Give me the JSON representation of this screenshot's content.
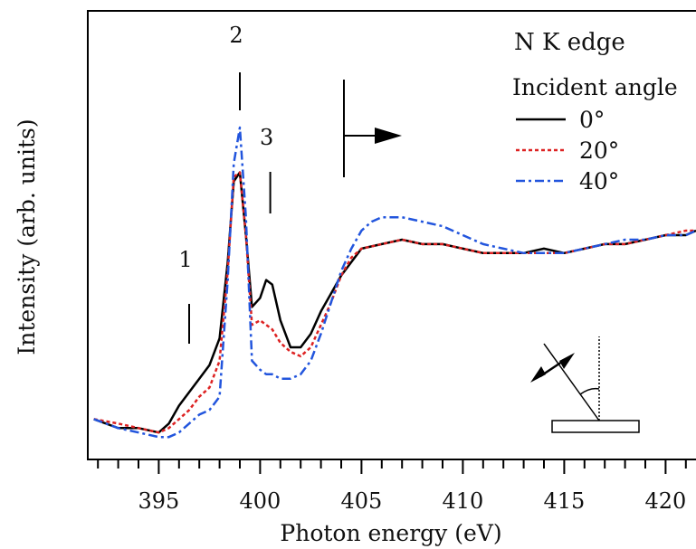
{
  "chart_data": {
    "type": "line",
    "title": "N K edge",
    "xlabel": "Photon energy (eV)",
    "ylabel": "Intensity (arb. units)",
    "xlim": [
      391.5,
      421.5
    ],
    "ylim": [
      0,
      1.0
    ],
    "x_ticks": [
      395,
      400,
      405,
      410,
      415,
      420
    ],
    "x_tick_labels": [
      "395",
      "400",
      "405",
      "410",
      "415",
      "420"
    ],
    "grid": false,
    "legend": {
      "title": "Incident angle",
      "placement": "top-right"
    },
    "annotations": [
      {
        "label": "1",
        "x": 396.5
      },
      {
        "label": "2",
        "x": 399.0
      },
      {
        "label": "3",
        "x": 400.5
      }
    ],
    "series": [
      {
        "name": "0°",
        "color": "#000000",
        "style": "solid",
        "x": [
          391.8,
          393,
          394,
          395,
          395.5,
          396,
          396.5,
          397,
          397.5,
          398,
          398.4,
          398.7,
          399.0,
          399.3,
          399.6,
          400,
          400.3,
          400.6,
          401,
          401.5,
          402,
          402.5,
          403,
          403.5,
          404,
          404.5,
          405,
          406,
          407,
          408,
          409,
          410,
          411,
          412,
          413,
          414,
          415,
          416,
          417,
          418,
          419,
          420,
          421,
          421.5
        ],
        "y": [
          0.09,
          0.07,
          0.07,
          0.06,
          0.08,
          0.12,
          0.15,
          0.18,
          0.21,
          0.27,
          0.44,
          0.62,
          0.64,
          0.5,
          0.34,
          0.36,
          0.4,
          0.39,
          0.31,
          0.25,
          0.25,
          0.28,
          0.33,
          0.37,
          0.41,
          0.44,
          0.47,
          0.48,
          0.49,
          0.48,
          0.48,
          0.47,
          0.46,
          0.46,
          0.46,
          0.47,
          0.46,
          0.47,
          0.48,
          0.48,
          0.49,
          0.5,
          0.5,
          0.51
        ]
      },
      {
        "name": "20°",
        "color": "#dd2222",
        "style": "dotted",
        "x": [
          391.8,
          393,
          394,
          395,
          395.5,
          396,
          396.5,
          397,
          397.5,
          398,
          398.4,
          398.7,
          399.0,
          399.3,
          399.6,
          400,
          400.3,
          400.6,
          401,
          401.5,
          402,
          402.5,
          403,
          403.5,
          404,
          404.5,
          405,
          406,
          407,
          408,
          409,
          410,
          411,
          412,
          413,
          414,
          415,
          416,
          417,
          418,
          419,
          420,
          421,
          421.5
        ],
        "y": [
          0.09,
          0.08,
          0.07,
          0.06,
          0.07,
          0.09,
          0.11,
          0.14,
          0.16,
          0.22,
          0.42,
          0.63,
          0.64,
          0.5,
          0.3,
          0.31,
          0.3,
          0.29,
          0.26,
          0.24,
          0.23,
          0.25,
          0.3,
          0.35,
          0.41,
          0.45,
          0.47,
          0.48,
          0.49,
          0.48,
          0.48,
          0.47,
          0.46,
          0.46,
          0.46,
          0.46,
          0.46,
          0.47,
          0.48,
          0.48,
          0.49,
          0.5,
          0.51,
          0.51
        ]
      },
      {
        "name": "40°",
        "color": "#2255dd",
        "style": "dashdot",
        "x": [
          391.8,
          393,
          394,
          395,
          395.5,
          396,
          396.5,
          397,
          397.5,
          398,
          398.4,
          398.7,
          399.0,
          399.3,
          399.6,
          400,
          400.3,
          400.6,
          401,
          401.5,
          402,
          402.5,
          403,
          403.5,
          404,
          404.5,
          405,
          405.5,
          406,
          407,
          408,
          409,
          410,
          411,
          412,
          413,
          414,
          415,
          416,
          417,
          418,
          419,
          420,
          421,
          421.5
        ],
        "y": [
          0.09,
          0.07,
          0.06,
          0.05,
          0.05,
          0.06,
          0.08,
          0.1,
          0.11,
          0.14,
          0.4,
          0.66,
          0.74,
          0.54,
          0.22,
          0.2,
          0.19,
          0.19,
          0.18,
          0.18,
          0.19,
          0.22,
          0.28,
          0.35,
          0.42,
          0.47,
          0.51,
          0.53,
          0.54,
          0.54,
          0.53,
          0.52,
          0.5,
          0.48,
          0.47,
          0.46,
          0.46,
          0.46,
          0.47,
          0.48,
          0.49,
          0.49,
          0.5,
          0.5,
          0.51
        ]
      }
    ]
  }
}
